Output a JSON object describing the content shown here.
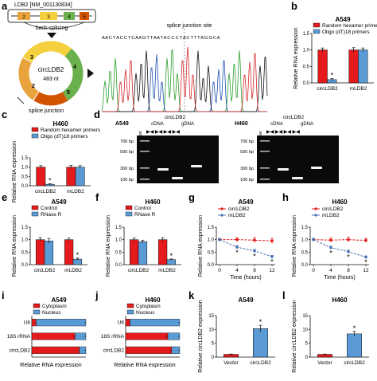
{
  "panels": {
    "a": {
      "letter": "a",
      "gene_box_title": "LDB2 [NM_001130834]",
      "exons": [
        "2",
        "3",
        "4",
        "5"
      ],
      "backsplice_label": "back-splicing",
      "circ_name": "circLDB2",
      "circ_length": "483 nt",
      "circ_exons": [
        "2",
        "3",
        "4",
        "5"
      ],
      "splice_junction_label": "splice junction",
      "site_label": "splice junction site",
      "sequence": "A A C T A C C T C A A G T T A A T A C C C T A C T T T A G G C A"
    },
    "b": {
      "letter": "b"
    },
    "c": {
      "letter": "c"
    },
    "d": {
      "letter": "d",
      "gel_left_title": "A549",
      "gel_right_title": "H460",
      "circ_label": "circLDB2",
      "cdna_label": "cDNA",
      "gdna_label": "gDNA",
      "marker_label": "Marker",
      "bands": [
        "700 bp",
        "500 bp",
        "300 bp",
        "100 bp"
      ]
    },
    "e": {
      "letter": "e"
    },
    "f": {
      "letter": "f"
    },
    "g": {
      "letter": "g"
    },
    "h": {
      "letter": "h"
    },
    "i": {
      "letter": "i"
    },
    "j": {
      "letter": "j"
    },
    "k": {
      "letter": "k"
    },
    "l": {
      "letter": "l"
    }
  },
  "chart_data": [
    {
      "panel": "b",
      "type": "bar",
      "title": "A549",
      "ylabel": "Relative RNA expression",
      "ylim": [
        0,
        1.5
      ],
      "yticks": [
        0,
        0.5,
        1.0,
        1.5
      ],
      "categories": [
        "circLDB2",
        "mLDB2"
      ],
      "series": [
        {
          "name": "Random hexamer primers",
          "color": "#e41a1c",
          "values": [
            1.0,
            1.0
          ],
          "errors": [
            0.06,
            0.07
          ]
        },
        {
          "name": "Oligo (dT)18 primers",
          "color": "#5b9bd5",
          "values": [
            0.1,
            1.0
          ],
          "errors": [
            0.03,
            0.06
          ]
        }
      ],
      "annotations": [
        {
          "text": "*",
          "category": 0,
          "series": 1
        }
      ]
    },
    {
      "panel": "c",
      "type": "bar",
      "title": "H460",
      "ylabel": "Relative RNA expression",
      "ylim": [
        0,
        1.5
      ],
      "yticks": [
        0,
        0.5,
        1.0,
        1.5
      ],
      "categories": [
        "circLDB2",
        "mLDB2"
      ],
      "series": [
        {
          "name": "Random hexamer primers",
          "color": "#e41a1c",
          "values": [
            1.0,
            1.0
          ],
          "errors": [
            0.08,
            0.09
          ]
        },
        {
          "name": "Oligo (dT)18 primers",
          "color": "#5b9bd5",
          "values": [
            0.08,
            1.0
          ],
          "errors": [
            0.03,
            0.08
          ]
        }
      ],
      "annotations": [
        {
          "text": "*",
          "category": 0,
          "series": 1
        }
      ]
    },
    {
      "panel": "e",
      "type": "bar",
      "title": "A549",
      "ylabel": "Relative RNA expression",
      "ylim": [
        0,
        1.5
      ],
      "yticks": [
        0,
        0.5,
        1.0,
        1.5
      ],
      "categories": [
        "circLDB2",
        "mLDB2"
      ],
      "series": [
        {
          "name": "Control",
          "color": "#e41a1c",
          "values": [
            1.0,
            1.0
          ],
          "errors": [
            0.08,
            0.06
          ]
        },
        {
          "name": "RNase R",
          "color": "#5b9bd5",
          "values": [
            0.95,
            0.22
          ],
          "errors": [
            0.1,
            0.04
          ]
        }
      ],
      "annotations": [
        {
          "text": "*",
          "category": 1,
          "series": 1
        }
      ]
    },
    {
      "panel": "f",
      "type": "bar",
      "title": "H460",
      "ylabel": "Relative RNA expression",
      "ylim": [
        0,
        1.5
      ],
      "yticks": [
        0,
        0.5,
        1.0,
        1.5
      ],
      "categories": [
        "circLDB2",
        "mLDB2"
      ],
      "series": [
        {
          "name": "Control",
          "color": "#e41a1c",
          "values": [
            1.0,
            1.0
          ],
          "errors": [
            0.06,
            0.08
          ]
        },
        {
          "name": "RNase R",
          "color": "#5b9bd5",
          "values": [
            0.92,
            0.2
          ],
          "errors": [
            0.06,
            0.03
          ]
        }
      ],
      "annotations": [
        {
          "text": "*",
          "category": 1,
          "series": 1
        }
      ]
    },
    {
      "panel": "g",
      "type": "line",
      "title": "A549",
      "xlabel": "Time (hours)",
      "ylabel": "Relative RNA expression",
      "x": [
        0,
        4,
        8,
        12
      ],
      "xlim": [
        0,
        12
      ],
      "ylim": [
        0,
        1.5
      ],
      "yticks": [
        0,
        0.5,
        1.0,
        1.5
      ],
      "series": [
        {
          "name": "circLDB2",
          "color": "#e41a1c",
          "values": [
            1.0,
            1.0,
            0.98,
            0.95
          ],
          "errors": [
            0.05,
            0.08,
            0.1,
            0.1
          ]
        },
        {
          "name": "mLDB2",
          "color": "#4a72b8",
          "values": [
            1.0,
            0.7,
            0.55,
            0.32
          ],
          "errors": [
            0.05,
            0.06,
            0.06,
            0.05
          ]
        }
      ],
      "annotations": [
        {
          "text": "*",
          "x_index": 1
        },
        {
          "text": "*",
          "x_index": 2
        },
        {
          "text": "*",
          "x_index": 3
        }
      ]
    },
    {
      "panel": "h",
      "type": "line",
      "title": "H460",
      "xlabel": "Time (hours)",
      "ylabel": "Relative RNA expression",
      "x": [
        0,
        4,
        8,
        12
      ],
      "xlim": [
        0,
        12
      ],
      "ylim": [
        0,
        1.5
      ],
      "yticks": [
        0,
        0.5,
        1.0,
        1.5
      ],
      "series": [
        {
          "name": "circLDB2",
          "color": "#e41a1c",
          "values": [
            1.0,
            0.98,
            1.0,
            0.97
          ],
          "errors": [
            0.05,
            0.08,
            0.1,
            0.08
          ]
        },
        {
          "name": "mLDB2",
          "color": "#4a72b8",
          "values": [
            1.0,
            0.68,
            0.52,
            0.3
          ],
          "errors": [
            0.05,
            0.06,
            0.06,
            0.05
          ]
        }
      ],
      "annotations": [
        {
          "text": "*",
          "x_index": 1
        },
        {
          "text": "*",
          "x_index": 2
        },
        {
          "text": "*",
          "x_index": 3
        }
      ]
    },
    {
      "panel": "i",
      "type": "bar",
      "orientation": "horizontal-stacked",
      "title": "A549",
      "xlabel": "Relative RNA expression",
      "xlim": [
        0,
        1
      ],
      "categories": [
        "U6",
        "18S rRNA",
        "circLDB2"
      ],
      "series": [
        {
          "name": "Cytoplasm",
          "color": "#e41a1c",
          "values": [
            0.08,
            0.8,
            0.88
          ],
          "errors": [
            0.02,
            0.04,
            0.03
          ]
        },
        {
          "name": "Nucleus",
          "color": "#5b9bd5",
          "values": [
            0.92,
            0.2,
            0.12
          ],
          "errors": [
            0.03,
            0.04,
            0.03
          ]
        }
      ]
    },
    {
      "panel": "j",
      "type": "bar",
      "orientation": "horizontal-stacked",
      "title": "H460",
      "xlabel": "Relative RNA expression",
      "xlim": [
        0,
        1
      ],
      "categories": [
        "U6",
        "18S rRNA",
        "circLDB2"
      ],
      "series": [
        {
          "name": "Cytoplasm",
          "color": "#e41a1c",
          "values": [
            0.08,
            0.78,
            0.85
          ],
          "errors": [
            0.02,
            0.05,
            0.04
          ]
        },
        {
          "name": "Nucleus",
          "color": "#5b9bd5",
          "values": [
            0.92,
            0.22,
            0.15
          ],
          "errors": [
            0.03,
            0.04,
            0.04
          ]
        }
      ]
    },
    {
      "panel": "k",
      "type": "bar",
      "title": "A549",
      "ylabel": "Relative circLDB2 expression",
      "ylim": [
        0,
        15
      ],
      "yticks": [
        0,
        5,
        10,
        15
      ],
      "categories": [
        "Vector",
        "circLDB2"
      ],
      "series": [
        {
          "colors": [
            "#e41a1c",
            "#5b9bd5"
          ],
          "values": [
            1.0,
            10.3
          ],
          "errors": [
            0.1,
            1.2
          ]
        }
      ],
      "annotations": [
        {
          "text": "*",
          "category": 1
        }
      ]
    },
    {
      "panel": "l",
      "type": "bar",
      "title": "H460",
      "ylabel": "Relative circLDB2 expression",
      "ylim": [
        0,
        15
      ],
      "yticks": [
        0,
        5,
        10,
        15
      ],
      "categories": [
        "Vector",
        "circLDB2"
      ],
      "series": [
        {
          "colors": [
            "#e41a1c",
            "#5b9bd5"
          ],
          "values": [
            1.0,
            8.4
          ],
          "errors": [
            0.1,
            0.9
          ]
        }
      ],
      "annotations": [
        {
          "text": "*",
          "category": 1
        }
      ]
    }
  ]
}
